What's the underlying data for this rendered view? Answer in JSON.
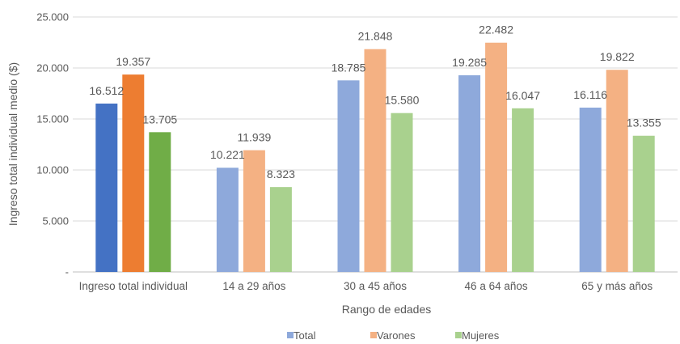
{
  "chart_data": {
    "type": "bar",
    "xlabel": "Rango de edades",
    "ylabel": "Ingreso total individual medio ($)",
    "ylim": [
      0,
      25000
    ],
    "yticks": [
      {
        "value": 0,
        "label": "-"
      },
      {
        "value": 5000,
        "label": "5.000"
      },
      {
        "value": 10000,
        "label": "10.000"
      },
      {
        "value": 15000,
        "label": "15.000"
      },
      {
        "value": 20000,
        "label": "20.000"
      },
      {
        "value": 25000,
        "label": "25.000"
      }
    ],
    "grid": true,
    "legend_position": "bottom",
    "categories": [
      "Ingreso total individual",
      "14 a 29 años",
      "30 a 45 años",
      "46 a 64 años",
      "65 y más años"
    ],
    "series": [
      {
        "name": "Total",
        "values": [
          16512,
          10221,
          18785,
          19285,
          16116
        ],
        "labels": [
          "16.512",
          "10.221",
          "18.785",
          "19.285",
          "16.116"
        ],
        "color": "#8EA9DB",
        "highlight_color": "#4472C4"
      },
      {
        "name": "Varones",
        "values": [
          19357,
          11939,
          21848,
          22482,
          19822
        ],
        "labels": [
          "19.357",
          "11.939",
          "21.848",
          "22.482",
          "19.822"
        ],
        "color": "#F4B183",
        "highlight_color": "#ED7D31"
      },
      {
        "name": "Mujeres",
        "values": [
          13705,
          8323,
          15580,
          16047,
          13355
        ],
        "labels": [
          "13.705",
          "8.323",
          "15.580",
          "16.047",
          "13.355"
        ],
        "color": "#A9D18E",
        "highlight_color": "#70AD47"
      }
    ],
    "highlight_category_index": 0,
    "gridline_color": "#D9D9D9",
    "axis_color": "#BFBFBF"
  }
}
